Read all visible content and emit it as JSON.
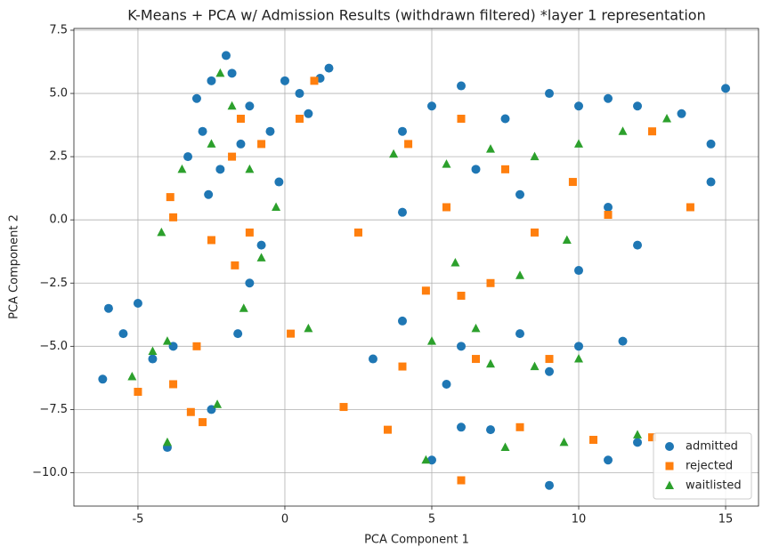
{
  "chart_data": {
    "type": "scatter",
    "title": "K-Means + PCA w/ Admission Results (withdrawn filtered) *layer 1 representation",
    "x_label": "PCA Component 1",
    "y_label": "PCA Component 2",
    "xlim": [
      -7.18,
      16.12
    ],
    "ylim": [
      -11.32,
      7.57
    ],
    "xticks": [
      -5,
      0,
      5,
      10,
      15
    ],
    "yticks": [
      {
        "value": -10,
        "label": "−10.0"
      },
      {
        "value": -7.5,
        "label": "−7.5"
      },
      {
        "value": -5,
        "label": "−5.0"
      },
      {
        "value": -2.5,
        "label": "−2.5"
      },
      {
        "value": 0,
        "label": "0.0"
      },
      {
        "value": 2.5,
        "label": "2.5"
      },
      {
        "value": 5,
        "label": "5.0"
      },
      {
        "value": 7.5,
        "label": "7.5"
      }
    ],
    "grid": true,
    "legend": "lower right",
    "series": [
      {
        "name": "admitted",
        "color": "#1f77b4",
        "marker": "circle",
        "x": [
          -2.5,
          -2,
          -1.8,
          -3,
          -2.8,
          -2.2,
          -1.5,
          -3.3,
          -1.2,
          -2.6,
          0,
          0.5,
          -0.5,
          0.8,
          -0.2,
          -0.8,
          -1.2,
          -1.6,
          1.5,
          1.2,
          -6,
          -5.5,
          -5,
          -4.5,
          -6.2,
          -3.8,
          -4,
          -2.5,
          4,
          5,
          6,
          7.5,
          9,
          10,
          11,
          12,
          13.5,
          15,
          14.5,
          6.5,
          8,
          10,
          12,
          4,
          11,
          14.5,
          4,
          6,
          8,
          10,
          11.5,
          5.5,
          9,
          3,
          5,
          7,
          9,
          11,
          12,
          6
        ],
        "y": [
          5.5,
          6.5,
          5.8,
          4.8,
          3.5,
          2,
          3,
          2.5,
          4.5,
          1,
          5.5,
          5,
          3.5,
          4.2,
          1.5,
          -1,
          -2.5,
          -4.5,
          6,
          5.6,
          -3.5,
          -4.5,
          -3.3,
          -5.5,
          -6.3,
          -5,
          -9,
          -7.5,
          3.5,
          4.5,
          5.3,
          4,
          5,
          4.5,
          4.8,
          4.5,
          4.2,
          5.2,
          3,
          2,
          1,
          -2,
          -1,
          0.3,
          0.5,
          1.5,
          -4,
          -5,
          -4.5,
          -5,
          -4.8,
          -6.5,
          -6,
          -5.5,
          -9.5,
          -8.3,
          -10.5,
          -9.5,
          -8.8,
          -8.2
        ]
      },
      {
        "name": "rejected",
        "color": "#ff7f0e",
        "marker": "square",
        "x": [
          -3.9,
          -3.8,
          -2.5,
          -1.8,
          -1.5,
          -0.8,
          -1.2,
          -1.7,
          -3,
          -3.8,
          -5,
          -2.8,
          -3.2,
          0.5,
          1,
          0.2,
          2,
          2.5,
          4.2,
          5.5,
          6,
          7.5,
          8.5,
          9.8,
          11,
          12.5,
          13.8,
          4.8,
          6,
          7,
          4,
          6.5,
          9,
          3.5,
          6,
          8,
          10.5,
          12.5
        ],
        "y": [
          0.9,
          0.1,
          -0.8,
          2.5,
          4,
          3,
          -0.5,
          -1.8,
          -5,
          -6.5,
          -6.8,
          -8,
          -7.6,
          4,
          5.5,
          -4.5,
          -7.4,
          -0.5,
          3,
          0.5,
          4,
          2,
          -0.5,
          1.5,
          0.2,
          3.5,
          0.5,
          -2.8,
          -3,
          -2.5,
          -5.8,
          -5.5,
          -5.5,
          -8.3,
          -10.3,
          -8.2,
          -8.7,
          -8.6
        ]
      },
      {
        "name": "waitlisted",
        "color": "#2ca02c",
        "marker": "triangle",
        "x": [
          -2.2,
          -2.5,
          -1.8,
          -3.5,
          -1.2,
          -0.3,
          -0.8,
          -1.4,
          -4,
          -4.5,
          -5.2,
          -4.2,
          -4,
          -2.3,
          0.8,
          3.7,
          5.5,
          7,
          8.5,
          10,
          11.5,
          13,
          8,
          9.6,
          5,
          7,
          8.5,
          10,
          6.5,
          4.8,
          7.5,
          9.5,
          12,
          5.8
        ],
        "y": [
          5.8,
          3,
          4.5,
          2,
          2,
          0.5,
          -1.5,
          -3.5,
          -4.8,
          -5.2,
          -6.2,
          -0.5,
          -8.8,
          -7.3,
          -4.3,
          2.6,
          2.2,
          2.8,
          2.5,
          3,
          3.5,
          4,
          -2.2,
          -0.8,
          -4.8,
          -5.7,
          -5.8,
          -5.5,
          -4.3,
          -9.5,
          -9,
          -8.8,
          -8.5,
          -1.7
        ]
      }
    ]
  }
}
